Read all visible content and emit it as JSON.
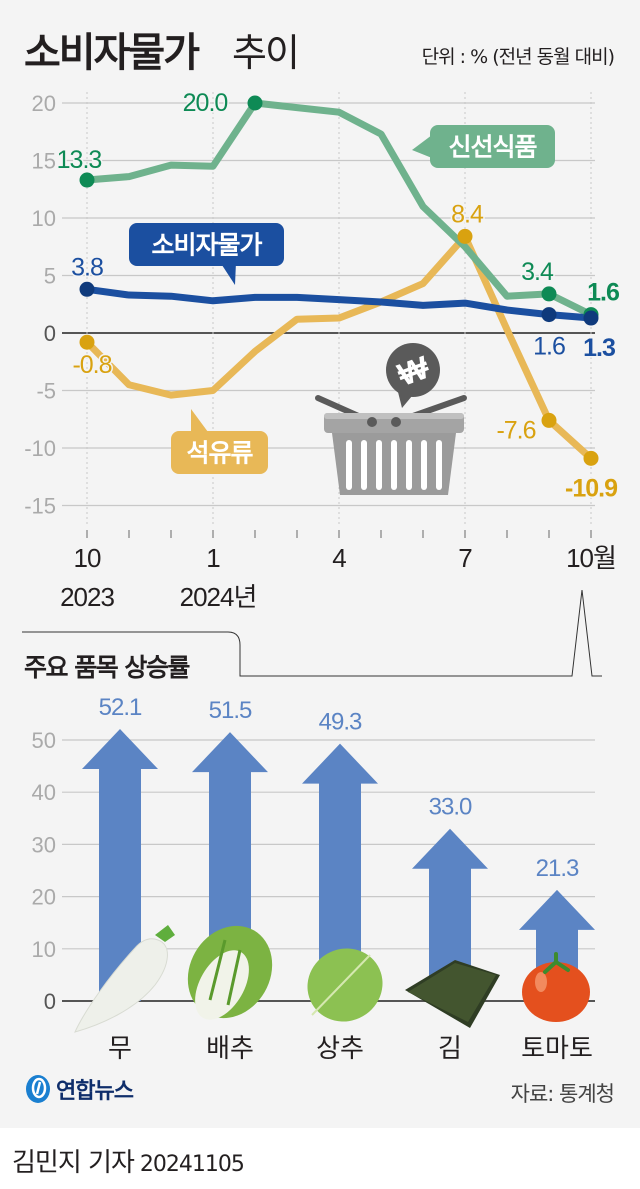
{
  "header": {
    "title_main": "소비자물가",
    "title_sub": "추이",
    "unit": "단위 : % (전년 동월 대비)"
  },
  "section2": {
    "title": "주요 품목 상승률"
  },
  "footer": {
    "logo_text": "연합뉴스",
    "source": "자료: 통계청",
    "reporter": "김민지 기자",
    "date": "20241105"
  },
  "colors": {
    "fresh_food": "#6fb28d",
    "fresh_food_dot": "#0e8a55",
    "cpi": "#1b4fa0",
    "cpi_dot": "#0f3a7c",
    "petroleum": "#e8b857",
    "petroleum_dot": "#d9a210",
    "bar": "#5b84c4",
    "grid": "#c8c8c8",
    "zero": "#555555"
  },
  "chart_data": [
    {
      "type": "line",
      "title": "소비자물가 추이",
      "ylabel": "단위 : % (전년 동월 대비)",
      "x": [
        "2023-10",
        "2023-11",
        "2023-12",
        "2024-01",
        "2024-02",
        "2024-03",
        "2024-04",
        "2024-05",
        "2024-06",
        "2024-07",
        "2024-08",
        "2024-09",
        "2024-10"
      ],
      "x_tick_labels": [
        {
          "month": "10",
          "year": "2023"
        },
        {
          "month": "1",
          "year": "2024년"
        },
        {
          "month": "4",
          "year": ""
        },
        {
          "month": "7",
          "year": ""
        },
        {
          "month": "10월",
          "year": ""
        }
      ],
      "y_ticks": [
        20,
        15,
        10,
        5,
        0,
        -5,
        -10,
        -15
      ],
      "ylim": [
        -15,
        20
      ],
      "grid": true,
      "series": [
        {
          "name": "신선식품",
          "values": [
            13.3,
            13.6,
            14.6,
            14.5,
            20.0,
            19.6,
            19.2,
            17.3,
            11.0,
            7.5,
            3.2,
            3.4,
            1.6
          ],
          "labels": [
            {
              "index": 0,
              "text": "13.3"
            },
            {
              "index": 4,
              "text": "20.0"
            },
            {
              "index": 11,
              "text": "3.4"
            },
            {
              "index": 12,
              "text": "1.6"
            }
          ]
        },
        {
          "name": "소비자물가",
          "values": [
            3.8,
            3.3,
            3.2,
            2.8,
            3.1,
            3.1,
            2.9,
            2.7,
            2.4,
            2.6,
            2.0,
            1.6,
            1.3
          ],
          "labels": [
            {
              "index": 0,
              "text": "3.8"
            },
            {
              "index": 11,
              "text": "1.6"
            },
            {
              "index": 12,
              "text": "1.3"
            }
          ]
        },
        {
          "name": "석유류",
          "values": [
            -0.8,
            -4.5,
            -5.4,
            -5.0,
            -1.6,
            1.2,
            1.3,
            2.7,
            4.3,
            8.4,
            0.3,
            -7.6,
            -10.9
          ],
          "labels": [
            {
              "index": 0,
              "text": "-0.8"
            },
            {
              "index": 9,
              "text": "8.4"
            },
            {
              "index": 11,
              "text": "-7.6"
            },
            {
              "index": 12,
              "text": "-10.9"
            }
          ]
        }
      ]
    },
    {
      "type": "bar",
      "title": "주요 품목 상승률",
      "categories": [
        "무",
        "배추",
        "상추",
        "김",
        "토마토"
      ],
      "values": [
        52.1,
        51.5,
        49.3,
        33.0,
        21.3
      ],
      "value_labels": [
        "52.1",
        "51.5",
        "49.3",
        "33.0",
        "21.3"
      ],
      "y_ticks": [
        50,
        40,
        30,
        20,
        10,
        0
      ],
      "ylim": [
        0,
        55
      ],
      "grid": true
    }
  ]
}
